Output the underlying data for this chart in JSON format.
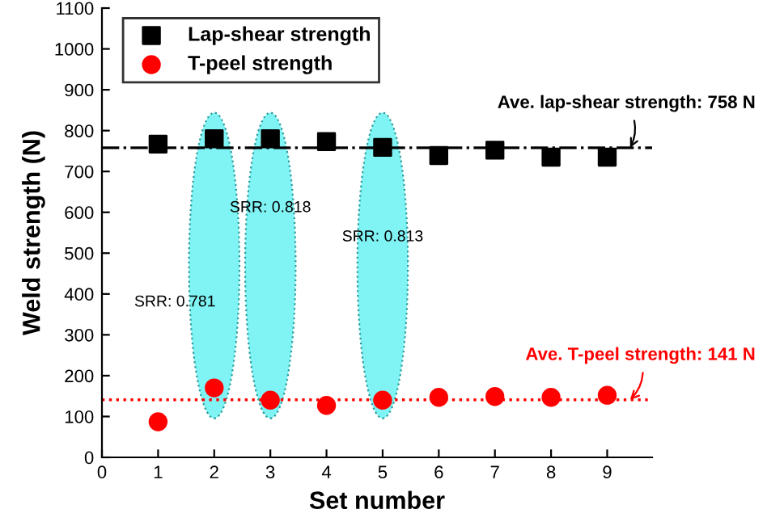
{
  "chart_data": {
    "type": "scatter",
    "xlabel": "Set number",
    "ylabel": "Weld strength (N)",
    "x": [
      1,
      2,
      3,
      4,
      5,
      6,
      7,
      8,
      9
    ],
    "series": [
      {
        "name": "Lap-shear strength",
        "color": "#000000",
        "marker": "square",
        "values": [
          767,
          780,
          780,
          773,
          759,
          739,
          752,
          735,
          735
        ]
      },
      {
        "name": "T-peel strength",
        "color": "#ff0000",
        "marker": "circle",
        "values": [
          87,
          170,
          140,
          127,
          140,
          147,
          149,
          147,
          152
        ]
      }
    ],
    "xlim": [
      0,
      9.8
    ],
    "xticks": [
      0,
      1,
      2,
      3,
      4,
      5,
      6,
      7,
      8,
      9
    ],
    "ylim": [
      0,
      1100
    ],
    "yticks": [
      0,
      100,
      200,
      300,
      400,
      500,
      600,
      700,
      800,
      900,
      1000,
      1100
    ],
    "ref_lines": [
      {
        "axis": "y",
        "value": 758,
        "label": "Ave. lap-shear strength: 758 N",
        "color": "#000000",
        "line_style": "dashdot"
      },
      {
        "axis": "y",
        "value": 141,
        "label": "Ave. T-peel strength: 141 N",
        "color": "#ff0000",
        "line_style": "dotted"
      }
    ],
    "annotations": [
      "SRR: 0.781",
      "SRR: 0.818",
      "SRR: 0.813"
    ],
    "legend": "top left",
    "grid": false
  }
}
